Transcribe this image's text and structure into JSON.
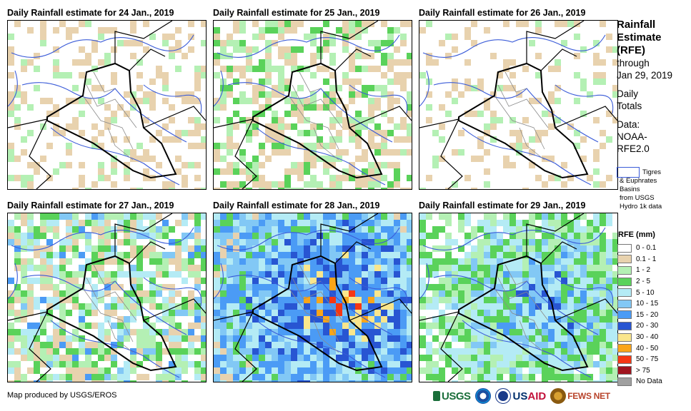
{
  "panels": [
    {
      "title": "Daily Rainfall estimate for 24 Jan., 2019",
      "rain_level": 0
    },
    {
      "title": "Daily Rainfall estimate for 25 Jan., 2019",
      "rain_level": 1
    },
    {
      "title": "Daily Rainfall estimate for 26 Jan., 2019",
      "rain_level": 0.5
    },
    {
      "title": "Daily Rainfall estimate for 27 Jan., 2019",
      "rain_level": 2
    },
    {
      "title": "Daily Rainfall estimate for 28 Jan., 2019",
      "rain_level": 4
    },
    {
      "title": "Daily Rainfall estimate for 29 Jan., 2019",
      "rain_level": 3
    }
  ],
  "legend": {
    "title_lines": [
      "Rainfall",
      "Estimate",
      "(RFE)"
    ],
    "through_lines": [
      "through",
      "Jan 29, 2019"
    ],
    "totals_lines": [
      "Daily",
      "Totals"
    ],
    "data_lines": [
      "Data:",
      "NOAA-",
      "RFE2.0"
    ],
    "basin_lines": [
      "Tigres",
      "& Euphrates",
      "Basins",
      "from USGS",
      "Hydro 1k data"
    ],
    "rfe_title": "RFE (mm)",
    "rfe_classes": [
      {
        "label": "0 - 0.1",
        "color": "#ffffff"
      },
      {
        "label": "0.1 - 1",
        "color": "#e8d2ae"
      },
      {
        "label": "1 - 2",
        "color": "#b4f0b4"
      },
      {
        "label": "2 - 5",
        "color": "#5ad25a"
      },
      {
        "label": "5 - 10",
        "color": "#b4ebf5"
      },
      {
        "label": "10 - 15",
        "color": "#82c8f5"
      },
      {
        "label": "15 - 20",
        "color": "#4b9bf5"
      },
      {
        "label": "20 - 30",
        "color": "#2855d2"
      },
      {
        "label": "30 - 40",
        "color": "#fae68c"
      },
      {
        "label": "40 - 50",
        "color": "#faa519"
      },
      {
        "label": "50 - 75",
        "color": "#f53714"
      },
      {
        "label": "> 75",
        "color": "#a0141e"
      },
      {
        "label": "No Data",
        "color": "#a0a0a0"
      }
    ]
  },
  "credit": "Map produced by USGS/EROS",
  "logos": {
    "usgs": "USGS",
    "usaid_prefix": "US",
    "usaid_suffix": "AID",
    "fews": "FEWS NET"
  },
  "map_colors": {
    "basin": "#3a5bd8",
    "country": "#000000",
    "province": "#8a8a8a"
  }
}
